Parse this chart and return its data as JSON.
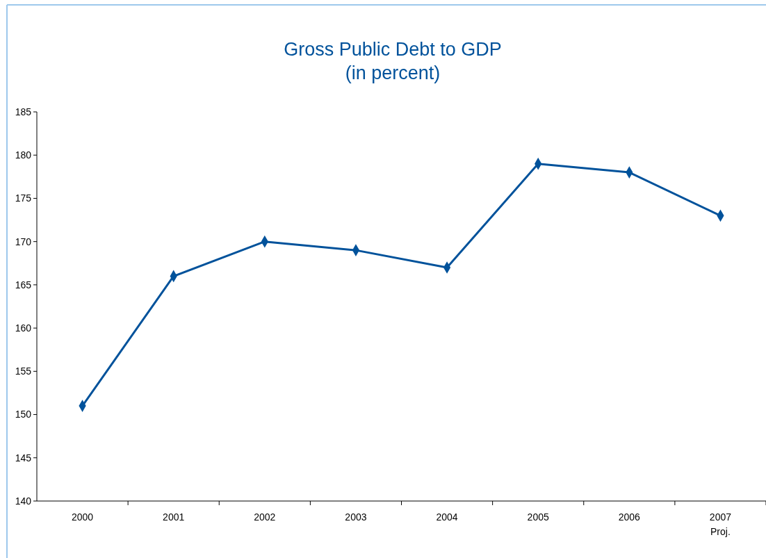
{
  "chart_data": {
    "type": "line",
    "title": "Gross Public Debt to GDP\n(in percent)",
    "categories": [
      "2000",
      "2001",
      "2002",
      "2003",
      "2004",
      "2005",
      "2006",
      "2007\nProj."
    ],
    "series": [
      {
        "color": "#00529b",
        "values": [
          151,
          166,
          170,
          169,
          167,
          179,
          178,
          173
        ]
      }
    ],
    "ylim": [
      140,
      185
    ],
    "yticks": [
      140,
      145,
      150,
      155,
      160,
      165,
      170,
      175,
      180,
      185
    ],
    "grid": false,
    "marker": "diamond",
    "line_style": "solid"
  }
}
